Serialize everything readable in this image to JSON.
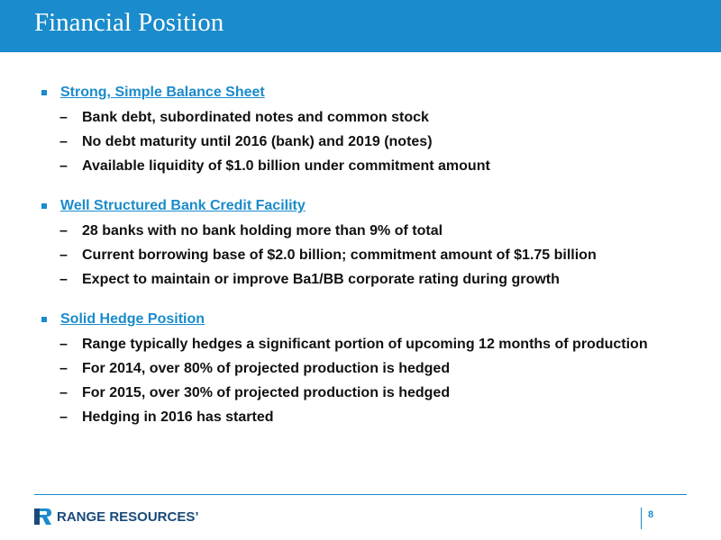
{
  "slide": {
    "title": "Financial Position",
    "page_number": "8"
  },
  "sections": [
    {
      "heading": "Strong, Simple Balance Sheet",
      "items": [
        "Bank debt, subordinated notes and common stock",
        "No debt maturity until 2016 (bank) and 2019 (notes)",
        "Available liquidity of $1.0 billion under commitment amount"
      ]
    },
    {
      "heading": "Well Structured Bank Credit Facility",
      "items": [
        "28 banks with no bank holding more than 9% of total",
        "Current borrowing base of $2.0 billion; commitment amount of $1.75 billion",
        "Expect to maintain or improve Ba1/BB corporate rating during growth"
      ]
    },
    {
      "heading": "Solid Hedge Position",
      "items": [
        "Range typically hedges a significant portion of upcoming 12 months of production",
        "For 2014, over 80% of projected production is hedged",
        "For 2015, over 30% of projected production is hedged",
        "Hedging in 2016 has started"
      ]
    }
  ],
  "bullet_glyph": "▪",
  "dash_glyph": "–",
  "footer": {
    "logo_text": "RANGE RESOURCES’",
    "logo_icon": "range-resources-logo-icon"
  },
  "colors": {
    "accent": "#1a8bcc",
    "text": "#111111",
    "logo": "#1a4a7a"
  }
}
